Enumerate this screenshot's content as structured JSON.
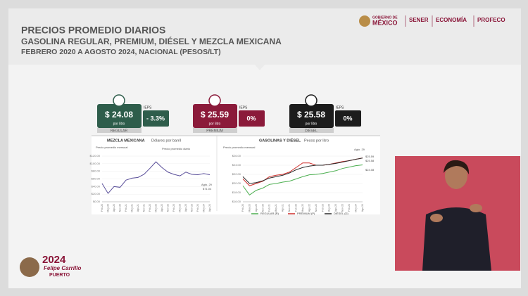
{
  "header": {
    "title": "PRECIOS PROMEDIO DIARIOS",
    "subtitle": "GASOLINA REGULAR, PREMIUM, DIÉSEL Y MEZCLA MEXICANA",
    "period": "FEBRERO 2020 A AGOSTO 2024, NACIONAL (PESOS/LT)"
  },
  "logos": {
    "gobierno": "GOBIERNO DE",
    "mexico": "MÉXICO",
    "sener": "SENER",
    "economia": "ECONOMÍA",
    "profeco": "PROFECO"
  },
  "cards": [
    {
      "price": "$ 24.08",
      "unit": "por litro",
      "fuel": "REGULAR",
      "tax_label": "IEPS",
      "tax": "- 3.3%"
    },
    {
      "price": "$ 25.59",
      "unit": "por litro",
      "fuel": "PREMIUM",
      "tax_label": "IEPS",
      "tax": "0%"
    },
    {
      "price": "$ 25.58",
      "unit": "por litro",
      "fuel": "DIÉSEL",
      "tax_label": "IEPS",
      "tax": "0%"
    }
  ],
  "chart_data": [
    {
      "type": "line",
      "title": "MEZCLA MEXICANA",
      "subtitle": "Dólares por barril",
      "annotations": [
        "Precio promedio mensual",
        "Precio promedio diario",
        "Agto. 29",
        "$71.04"
      ],
      "categories": [
        "Feb-20",
        "May-20",
        "Ago-20",
        "Nov-20",
        "Feb-21",
        "May-21",
        "Ago-21",
        "Nov-21",
        "Feb-22",
        "May-22",
        "Ago-22",
        "Nov-22",
        "Feb-23",
        "May-23",
        "Ago-23",
        "Nov-23",
        "Feb-24",
        "May-24",
        "Ago-24"
      ],
      "values": [
        48,
        22,
        40,
        38,
        57,
        62,
        64,
        72,
        88,
        105,
        90,
        78,
        72,
        68,
        78,
        72,
        71,
        74,
        71.04
      ],
      "color": "#5a4f9a",
      "ylim": [
        0,
        120
      ],
      "yticks": [
        {
          "value": 0,
          "label": "$0.00"
        },
        {
          "value": 20,
          "label": "$20.00"
        },
        {
          "value": 40,
          "label": "$40.00"
        },
        {
          "value": 60,
          "label": "$60.00"
        },
        {
          "value": 80,
          "label": "$80.00"
        },
        {
          "value": 100,
          "label": "$100.00"
        },
        {
          "value": 120,
          "label": "$120.00"
        }
      ]
    },
    {
      "type": "line",
      "title": "GASOLINAS Y DIÉSEL",
      "subtitle": "Pesos por litro",
      "annotations": [
        "Precio promedio mensual",
        "Agto. 29",
        "$25.59",
        "$25.58",
        "$24.08"
      ],
      "categories": [
        "Feb-20",
        "May-20",
        "Ago-20",
        "Nov-20",
        "Feb-21",
        "May-21",
        "Ago-21",
        "Nov-21",
        "Feb-22",
        "May-22",
        "Ago-22",
        "Nov-22",
        "Feb-23",
        "May-23",
        "Ago-23",
        "Nov-23",
        "Feb-24",
        "May-24",
        "Ago-24"
      ],
      "series": [
        {
          "name": "REGULAR (R)",
          "color": "#4caf50",
          "values": [
            19.5,
            17.5,
            18.5,
            19,
            19.8,
            20,
            20.3,
            20.5,
            21,
            21.5,
            21.9,
            22,
            22.2,
            22.5,
            22.8,
            23.3,
            23.6,
            23.9,
            24.08
          ]
        },
        {
          "name": "PREMIUM (P)",
          "color": "#d0312d",
          "values": [
            21,
            19.5,
            20,
            20.5,
            21.5,
            21.8,
            22,
            22.5,
            23.5,
            24.5,
            24.5,
            24,
            24,
            24.2,
            24.5,
            24.8,
            25,
            25.3,
            25.59
          ]
        },
        {
          "name": "DIÉSEL (D)",
          "color": "#2b2b2b",
          "values": [
            21.5,
            20,
            20.2,
            20.6,
            21.2,
            21.5,
            21.8,
            22.3,
            23,
            23.5,
            23.8,
            24,
            24,
            24.2,
            24.4,
            24.7,
            25,
            25.3,
            25.58
          ]
        }
      ],
      "ylim": [
        16,
        26
      ],
      "yticks": [
        {
          "value": 16,
          "label": "$16.00"
        },
        {
          "value": 18,
          "label": "$18.00"
        },
        {
          "value": 20,
          "label": "$20.00"
        },
        {
          "value": 22,
          "label": "$22.00"
        },
        {
          "value": 24,
          "label": "$24.00"
        },
        {
          "value": 26,
          "label": "$26.00"
        }
      ]
    }
  ],
  "footer": {
    "year": "2024",
    "name": "Felipe Carrillo",
    "surname": "PUERTO"
  }
}
